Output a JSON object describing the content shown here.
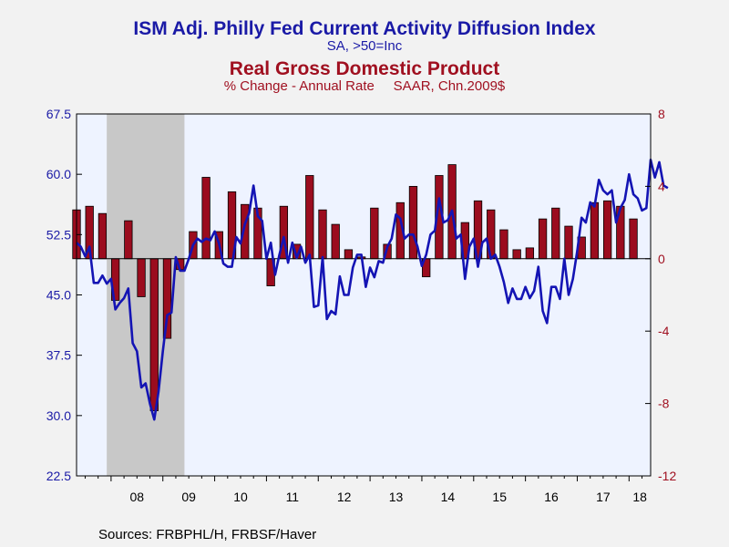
{
  "titles": {
    "line_title": "ISM Adj. Philly Fed Current Activity Diffusion Index",
    "line_subtitle": "SA, >50=Inc",
    "bar_title": "Real Gross Domestic Product",
    "bar_subtitle": "% Change - Annual Rate     SAAR, Chn.2009$"
  },
  "source": "Sources:  FRBPHL/H, FRBSF/Haver",
  "colors": {
    "line": "#1414b4",
    "bar": "#9b0c1e",
    "plot_bg": "#eef3ff",
    "recession": "#c8c8c8",
    "left_axis": "#1a1aa6",
    "right_axis": "#a01020"
  },
  "chart_data": {
    "type": "line+bar",
    "x_start": "2007-05",
    "x_end": "2018-06",
    "x_tick_labels": [
      "08",
      "09",
      "10",
      "11",
      "12",
      "13",
      "14",
      "15",
      "16",
      "17",
      "18"
    ],
    "left_axis": {
      "ylim": [
        22.5,
        67.5
      ],
      "ticks": [
        "22.5",
        "30.0",
        "37.5",
        "45.0",
        "52.5",
        "60.0",
        "67.5"
      ]
    },
    "right_axis": {
      "ylim": [
        -12,
        8
      ],
      "ticks": [
        "-12",
        "-8",
        "-4",
        "0",
        "4",
        "8"
      ]
    },
    "recession": {
      "start": "2007-12",
      "end": "2009-06"
    },
    "bar_series": {
      "name": "Real Gross Domestic Product",
      "axis": "right",
      "x": [
        "2007Q2",
        "2007Q3",
        "2007Q4",
        "2008Q1",
        "2008Q2",
        "2008Q3",
        "2008Q4",
        "2009Q1",
        "2009Q2",
        "2009Q3",
        "2009Q4",
        "2010Q1",
        "2010Q2",
        "2010Q3",
        "2010Q4",
        "2011Q1",
        "2011Q2",
        "2011Q3",
        "2011Q4",
        "2012Q1",
        "2012Q2",
        "2012Q3",
        "2012Q4",
        "2013Q1",
        "2013Q2",
        "2013Q3",
        "2013Q4",
        "2014Q1",
        "2014Q2",
        "2014Q3",
        "2014Q4",
        "2015Q1",
        "2015Q2",
        "2015Q3",
        "2015Q4",
        "2016Q1",
        "2016Q2",
        "2016Q3",
        "2016Q4",
        "2017Q1",
        "2017Q2",
        "2017Q3",
        "2017Q4",
        "2018Q1"
      ],
      "values": [
        2.7,
        2.9,
        2.5,
        -2.3,
        2.1,
        -2.1,
        -8.4,
        -4.4,
        -0.6,
        1.5,
        4.5,
        1.5,
        3.7,
        3.0,
        2.8,
        -1.5,
        2.9,
        0.8,
        4.6,
        2.7,
        1.9,
        0.5,
        0.1,
        2.8,
        0.8,
        3.1,
        4.0,
        -1.0,
        4.6,
        5.2,
        2.0,
        3.2,
        2.7,
        1.6,
        0.5,
        0.6,
        2.2,
        2.8,
        1.8,
        1.2,
        3.1,
        3.2,
        2.9,
        2.2
      ]
    },
    "line_series": {
      "name": "ISM Adj. Philly Fed Current Activity Diffusion Index",
      "axis": "left",
      "start": "2007-05",
      "frequency": "monthly",
      "values": [
        51.5,
        51.0,
        49.8,
        51.0,
        46.5,
        46.5,
        47.4,
        46.4,
        47.0,
        43.2,
        44.0,
        44.6,
        45.8,
        39.0,
        38.0,
        33.5,
        34.0,
        31.5,
        29.5,
        33.0,
        38.0,
        42.5,
        42.8,
        49.7,
        48.0,
        48.0,
        49.5,
        51.2,
        52.0,
        51.6,
        52.0,
        51.8,
        52.9,
        51.4,
        48.9,
        48.5,
        48.5,
        52.2,
        51.4,
        53.8,
        55.2,
        58.6,
        54.8,
        54.2,
        49.5,
        51.5,
        47.5,
        50.0,
        52.2,
        49.0,
        51.5,
        49.6,
        51.0,
        49.0,
        50.0,
        43.5,
        43.7,
        49.7,
        42.0,
        43.0,
        42.6,
        47.3,
        45.0,
        45.0,
        48.4,
        50.0,
        50.0,
        46.0,
        48.4,
        47.2,
        49.2,
        49.0,
        51.0,
        52.0,
        55.0,
        54.5,
        52.0,
        52.5,
        52.5,
        51.0,
        48.6,
        50.0,
        52.5,
        53.0,
        57.0,
        54.0,
        54.3,
        55.5,
        52.0,
        52.5,
        47.0,
        51.0,
        52.0,
        48.5,
        51.5,
        52.0,
        49.5,
        50.0,
        48.5,
        46.6,
        44.0,
        45.8,
        44.5,
        44.5,
        46.0,
        44.6,
        45.5,
        48.5,
        43.0,
        41.5,
        46.0,
        46.0,
        44.5,
        49.5,
        45.0,
        47.0,
        50.5,
        54.6,
        54.0,
        56.5,
        56.0,
        59.3,
        58.0,
        57.5,
        58.0,
        54.0,
        55.8,
        56.8,
        60.0,
        57.5,
        57.0,
        55.5,
        55.8,
        61.8,
        59.6,
        61.5,
        58.6,
        58.3
      ]
    }
  }
}
